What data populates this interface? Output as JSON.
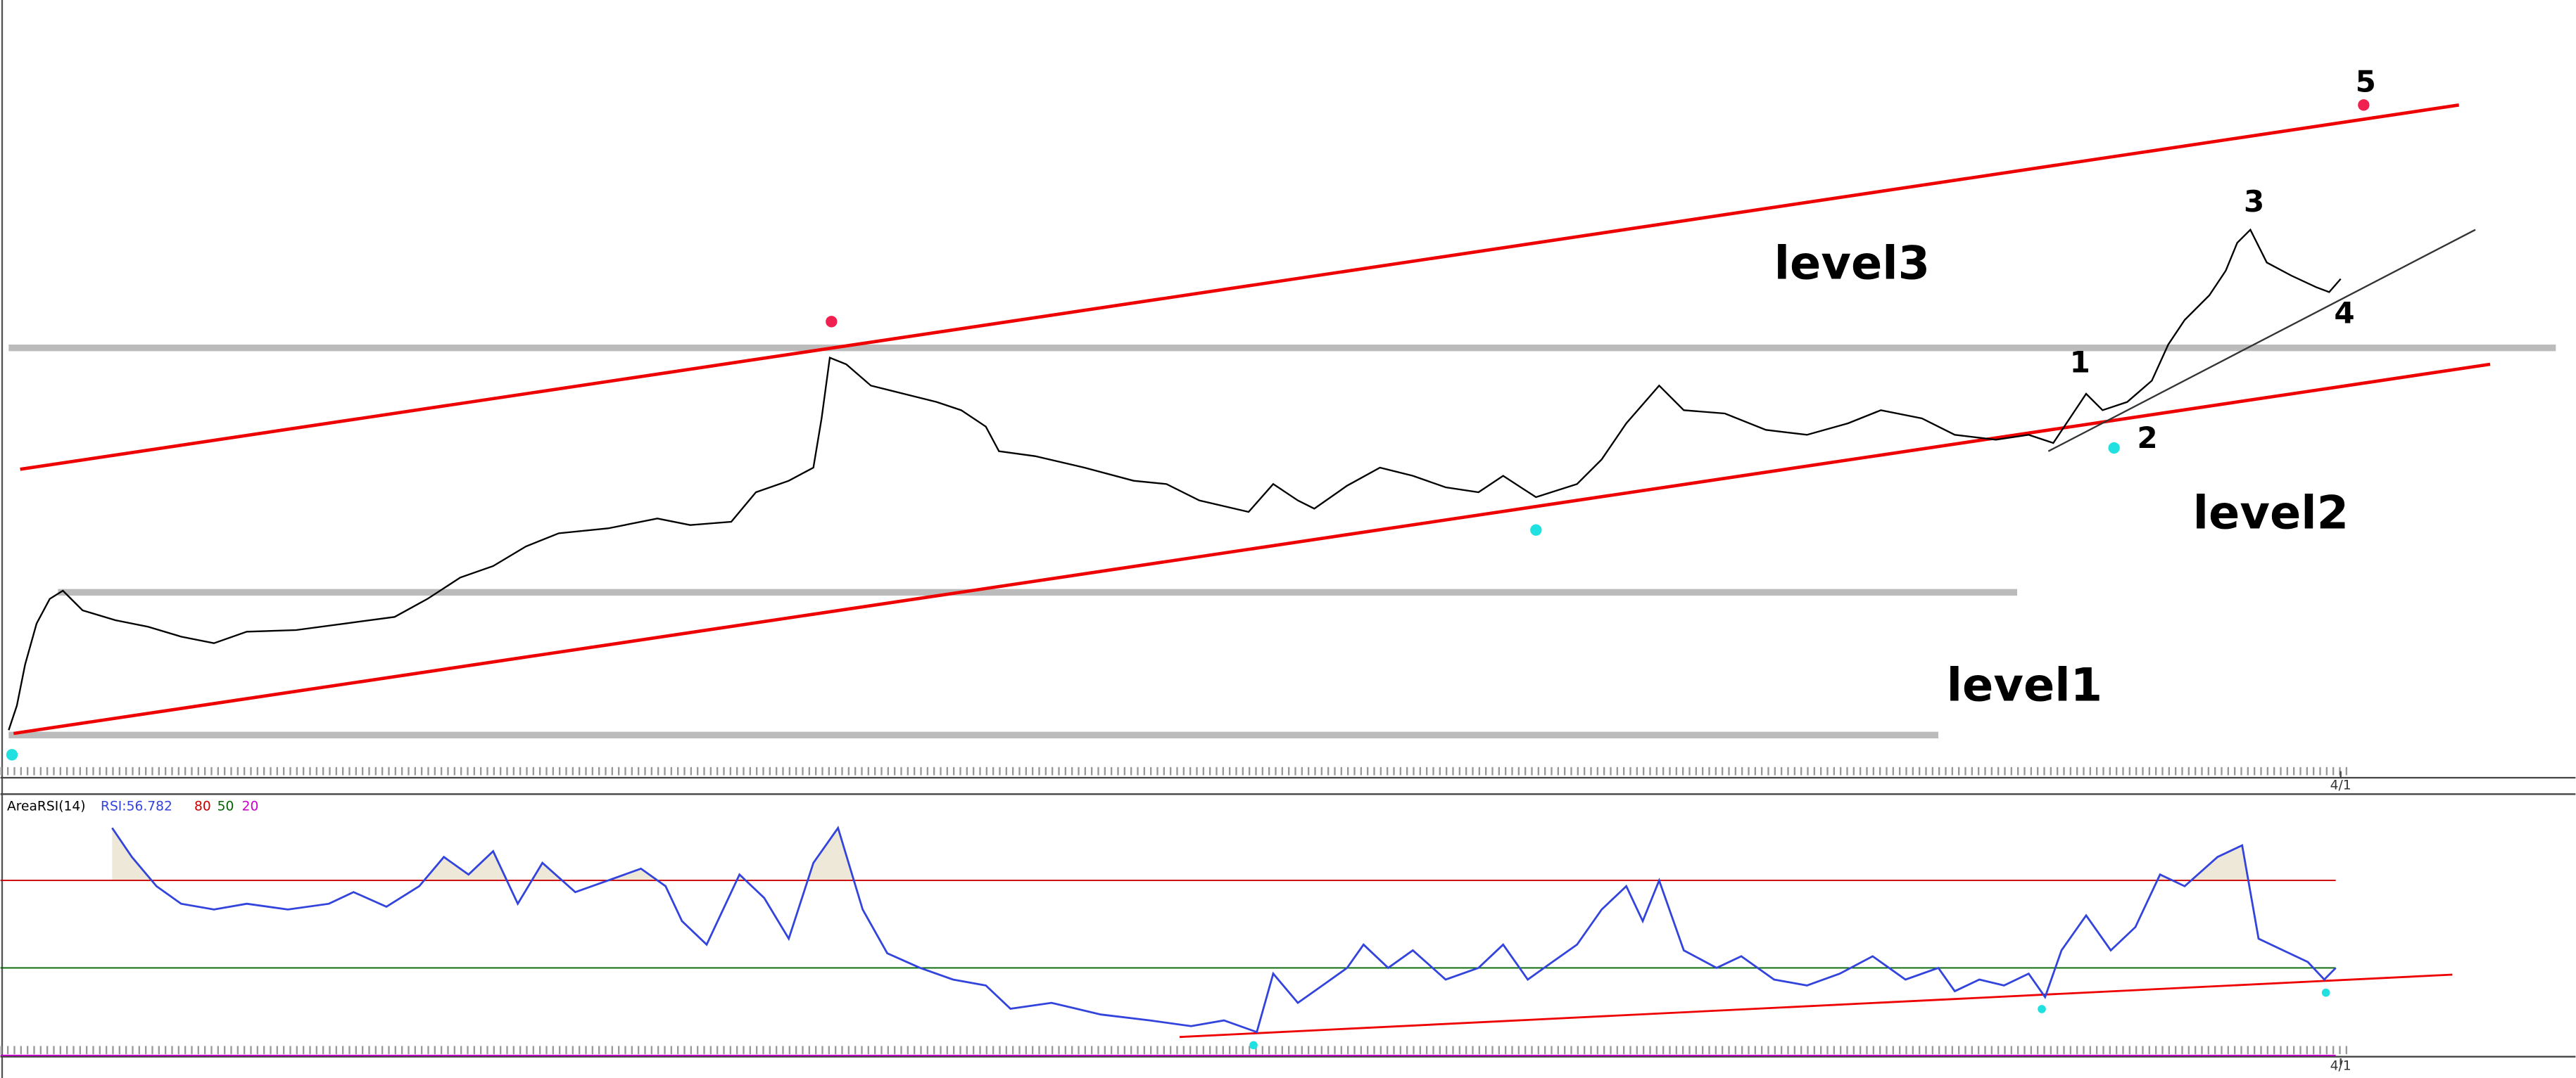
{
  "chart_data": [
    {
      "type": "line",
      "color": "#000000",
      "annotations": [
        "level3",
        "level2",
        "level1",
        "1",
        "2",
        "3",
        "4",
        "5"
      ],
      "xlim": [
        0,
        1568
      ],
      "ylim": [
        0,
        470
      ],
      "xticks": [
        {
          "value": 1425,
          "label": "4/1"
        }
      ],
      "x": [
        5,
        10,
        15,
        22,
        30,
        38,
        50,
        70,
        90,
        110,
        130,
        150,
        180,
        210,
        240,
        260,
        280,
        300,
        320,
        340,
        370,
        400,
        420,
        445,
        460,
        480,
        495,
        500,
        505,
        515,
        530,
        550,
        570,
        585,
        600,
        608,
        630,
        660,
        690,
        710,
        730,
        760,
        775,
        790,
        800,
        820,
        840,
        860,
        880,
        900,
        915,
        935,
        960,
        975,
        990,
        1010,
        1025,
        1050,
        1075,
        1100,
        1125,
        1145,
        1170,
        1190,
        1215,
        1235,
        1250,
        1260,
        1270,
        1280,
        1295,
        1310,
        1320,
        1330,
        1345,
        1355,
        1362,
        1370,
        1380,
        1395,
        1410,
        1418,
        1425
      ],
      "values": [
        25,
        40,
        65,
        90,
        105,
        110,
        98,
        92,
        88,
        82,
        78,
        85,
        86,
        90,
        94,
        105,
        118,
        125,
        137,
        145,
        148,
        154,
        150,
        152,
        170,
        177,
        185,
        215,
        252,
        248,
        235,
        230,
        225,
        220,
        210,
        195,
        192,
        185,
        177,
        175,
        165,
        158,
        175,
        165,
        160,
        174,
        185,
        180,
        173,
        170,
        180,
        167,
        175,
        190,
        212,
        235,
        220,
        218,
        208,
        205,
        212,
        220,
        215,
        205,
        202,
        205,
        200,
        215,
        230,
        220,
        225,
        238,
        260,
        275,
        290,
        305,
        322,
        330,
        310,
        302,
        295,
        292,
        300
      ]
    },
    {
      "type": "line",
      "title": "AreaRSI(14)",
      "legend": "RSI:56.782",
      "color": "#3344dd",
      "area_color": "#eee8d8",
      "levels": [
        {
          "value": 80,
          "color": "#cc0000"
        },
        {
          "value": 50,
          "color": "#006600"
        },
        {
          "value": 20,
          "color": "#cc00cc"
        }
      ],
      "xlim": [
        0,
        1568
      ],
      "ylim": [
        19,
        109
      ],
      "xticks": [
        {
          "value": 1425,
          "label": "4/1"
        }
      ],
      "x": [
        68,
        80,
        95,
        110,
        130,
        150,
        175,
        200,
        215,
        235,
        255,
        270,
        285,
        300,
        315,
        330,
        350,
        370,
        390,
        405,
        415,
        430,
        450,
        465,
        480,
        495,
        510,
        525,
        540,
        560,
        580,
        600,
        615,
        640,
        670,
        700,
        725,
        745,
        765,
        775,
        790,
        805,
        820,
        830,
        845,
        860,
        880,
        900,
        915,
        930,
        945,
        960,
        975,
        990,
        1000,
        1010,
        1025,
        1045,
        1060,
        1080,
        1100,
        1120,
        1140,
        1160,
        1180,
        1190,
        1205,
        1220,
        1235,
        1245,
        1255,
        1270,
        1285,
        1300,
        1315,
        1330,
        1350,
        1365,
        1375,
        1390,
        1405,
        1415,
        1422
      ],
      "values": [
        98,
        88,
        78,
        72,
        70,
        72,
        70,
        72,
        76,
        71,
        78,
        88,
        82,
        90,
        72,
        86,
        76,
        80,
        84,
        78,
        66,
        58,
        82,
        74,
        60,
        86,
        98,
        70,
        55,
        50,
        46,
        44,
        36,
        38,
        34,
        32,
        30,
        32,
        28,
        48,
        38,
        44,
        50,
        58,
        50,
        56,
        46,
        50,
        58,
        46,
        52,
        58,
        70,
        78,
        66,
        80,
        56,
        50,
        54,
        46,
        44,
        48,
        54,
        46,
        50,
        42,
        46,
        44,
        48,
        40,
        56,
        68,
        56,
        64,
        82,
        78,
        88,
        92,
        60,
        56,
        52,
        46,
        50
      ]
    }
  ]
}
